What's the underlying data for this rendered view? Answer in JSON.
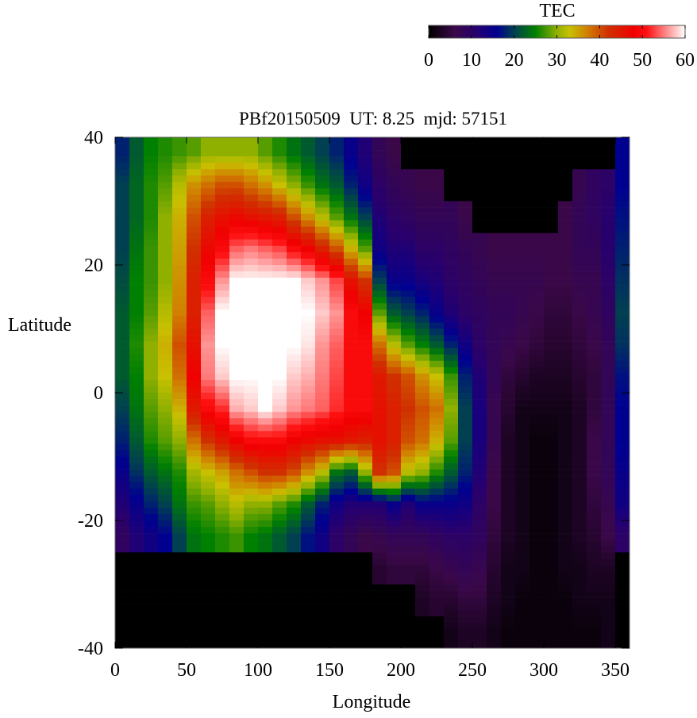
{
  "chart_data": {
    "type": "heatmap",
    "title": "PBf20150509  UT: 8.25  mjd: 57151",
    "xlabel": "Longitude",
    "ylabel": "Latitude",
    "xlim": [
      0,
      360
    ],
    "ylim": [
      -40,
      40
    ],
    "xticks": [
      "0",
      "50",
      "100",
      "150",
      "200",
      "250",
      "300",
      "350"
    ],
    "xtick_values": [
      0,
      50,
      100,
      150,
      200,
      250,
      300,
      350
    ],
    "yticks": [
      "40",
      "20",
      "0",
      "-20",
      "-40"
    ],
    "ytick_values": [
      40,
      20,
      0,
      -20,
      -40
    ],
    "colorbar": {
      "label": "TEC",
      "range": [
        0,
        60
      ],
      "ticks": [
        "0",
        "10",
        "20",
        "30",
        "40",
        "50",
        "60"
      ],
      "tick_values": [
        0,
        10,
        20,
        30,
        40,
        50,
        60
      ],
      "colormap": [
        [
          0,
          "#000000"
        ],
        [
          6,
          "#3a0848"
        ],
        [
          11,
          "#28006e"
        ],
        [
          16,
          "#000090"
        ],
        [
          20,
          "#004050"
        ],
        [
          25,
          "#008000"
        ],
        [
          30,
          "#90b000"
        ],
        [
          33,
          "#c8c000"
        ],
        [
          37,
          "#d08000"
        ],
        [
          42,
          "#d03000"
        ],
        [
          48,
          "#f00000"
        ],
        [
          51,
          "#ff1010"
        ],
        [
          60,
          "#ffffff"
        ]
      ],
      "position": "top-right"
    },
    "no_data_color": "#000000",
    "lon_centers": [
      5,
      15,
      25,
      35,
      45,
      55,
      65,
      75,
      85,
      95,
      105,
      115,
      125,
      135,
      145,
      155,
      165,
      175,
      185,
      195,
      205,
      215,
      225,
      235,
      245,
      255,
      265,
      275,
      285,
      295,
      305,
      315,
      325,
      335,
      345,
      355
    ],
    "lat_centers": [
      37.5,
      32.5,
      27.5,
      22.5,
      17.5,
      12.5,
      7.5,
      2.5,
      -2.5,
      -7.5,
      -12.5,
      -17.5,
      -22.5,
      -27.5,
      -32.5,
      -37.5
    ],
    "values_by_lon": [
      [
        18,
        20,
        20,
        20,
        21,
        22,
        22,
        22,
        20,
        18,
        15,
        12,
        9,
        null,
        null,
        null
      ],
      [
        22,
        23,
        23,
        24,
        25,
        25,
        26,
        25,
        24,
        22,
        19,
        15,
        12,
        null,
        null,
        null
      ],
      [
        25,
        26,
        26,
        27,
        27,
        28,
        30,
        30,
        28,
        26,
        22,
        18,
        14,
        null,
        null,
        null
      ],
      [
        26,
        28,
        30,
        30,
        30,
        32,
        34,
        33,
        30,
        28,
        24,
        20,
        16,
        null,
        null,
        null
      ],
      [
        27,
        32,
        34,
        35,
        36,
        37,
        40,
        38,
        34,
        30,
        26,
        24,
        20,
        null,
        null,
        null
      ],
      [
        28,
        36,
        40,
        42,
        44,
        44,
        46,
        48,
        45,
        38,
        31,
        27,
        24,
        null,
        null,
        null
      ],
      [
        30,
        38,
        44,
        47,
        50,
        54,
        56,
        55,
        50,
        42,
        33,
        28,
        25,
        null,
        null,
        null
      ],
      [
        30,
        40,
        46,
        50,
        56,
        60,
        60,
        58,
        52,
        45,
        35,
        30,
        26,
        null,
        null,
        null
      ],
      [
        30,
        40,
        47,
        54,
        60,
        60,
        60,
        60,
        57,
        48,
        38,
        32,
        27,
        null,
        null,
        null
      ],
      [
        30,
        38,
        46,
        55,
        60,
        60,
        60,
        60,
        58,
        50,
        40,
        30,
        25,
        null,
        null,
        null
      ],
      [
        28,
        36,
        45,
        54,
        60,
        60,
        60,
        60,
        60,
        50,
        42,
        30,
        24,
        null,
        null,
        null
      ],
      [
        26,
        33,
        44,
        53,
        60,
        60,
        60,
        60,
        58,
        50,
        42,
        28,
        22,
        null,
        null,
        null
      ],
      [
        24,
        30,
        40,
        50,
        60,
        60,
        60,
        58,
        56,
        48,
        40,
        26,
        20,
        null,
        null,
        null
      ],
      [
        22,
        27,
        36,
        48,
        58,
        60,
        59,
        57,
        55,
        47,
        36,
        22,
        17,
        null,
        null,
        null
      ],
      [
        20,
        24,
        32,
        44,
        56,
        58,
        56,
        55,
        54,
        46,
        32,
        18,
        14,
        null,
        null,
        null
      ],
      [
        18,
        22,
        28,
        40,
        53,
        56,
        54,
        53,
        52,
        46,
        24,
        14,
        10,
        null,
        null,
        null
      ],
      [
        15,
        18,
        24,
        34,
        46,
        50,
        50,
        50,
        50,
        45,
        22,
        12,
        8,
        null,
        null,
        null
      ],
      [
        12,
        14,
        20,
        28,
        42,
        48,
        50,
        50,
        50,
        44,
        30,
        12,
        6,
        null,
        null,
        null
      ],
      [
        8,
        10,
        12,
        14,
        20,
        28,
        38,
        45,
        46,
        46,
        42,
        12,
        7,
        4,
        null,
        null
      ],
      [
        6,
        8,
        10,
        12,
        15,
        22,
        32,
        42,
        44,
        44,
        40,
        15,
        8,
        5,
        null,
        null
      ],
      [
        null,
        7,
        9,
        12,
        15,
        20,
        28,
        40,
        42,
        40,
        32,
        12,
        8,
        5,
        null,
        null
      ],
      [
        null,
        6,
        8,
        10,
        13,
        18,
        25,
        36,
        40,
        38,
        30,
        15,
        8,
        5,
        3,
        null
      ],
      [
        null,
        6,
        8,
        10,
        12,
        15,
        22,
        33,
        38,
        34,
        26,
        15,
        9,
        6,
        4,
        null
      ],
      [
        null,
        null,
        8,
        9,
        10,
        12,
        18,
        27,
        30,
        28,
        22,
        15,
        10,
        7,
        4,
        2
      ],
      [
        null,
        null,
        6,
        8,
        9,
        10,
        14,
        18,
        20,
        20,
        18,
        14,
        10,
        8,
        5,
        3
      ],
      [
        null,
        null,
        null,
        7,
        8,
        9,
        10,
        12,
        13,
        13,
        12,
        10,
        9,
        7,
        5,
        3
      ],
      [
        null,
        null,
        null,
        6,
        7,
        8,
        8,
        8,
        7,
        7,
        6,
        6,
        5,
        4,
        3,
        2
      ],
      [
        null,
        null,
        null,
        6,
        7,
        8,
        7,
        5,
        4,
        3,
        3,
        3,
        3,
        2,
        2,
        1
      ],
      [
        null,
        null,
        null,
        6,
        7,
        7,
        6,
        4,
        2,
        2,
        2,
        2,
        2,
        2,
        1,
        1
      ],
      [
        null,
        null,
        null,
        6,
        7,
        6,
        5,
        3,
        2,
        1,
        1,
        1,
        1,
        1,
        1,
        1
      ],
      [
        null,
        null,
        null,
        6,
        6,
        5,
        4,
        3,
        2,
        1,
        1,
        1,
        1,
        1,
        1,
        1
      ],
      [
        null,
        null,
        6,
        6,
        6,
        5,
        4,
        3,
        2,
        2,
        2,
        2,
        2,
        2,
        1,
        1
      ],
      [
        null,
        7,
        8,
        8,
        7,
        6,
        5,
        4,
        3,
        3,
        3,
        3,
        3,
        2,
        2,
        1
      ],
      [
        null,
        9,
        9,
        8,
        7,
        7,
        6,
        5,
        5,
        6,
        6,
        5,
        4,
        3,
        2,
        1
      ],
      [
        null,
        10,
        11,
        11,
        10,
        9,
        8,
        8,
        8,
        8,
        8,
        7,
        6,
        3,
        2,
        2
      ],
      [
        16,
        16,
        17,
        18,
        19,
        20,
        19,
        17,
        16,
        16,
        15,
        14,
        10,
        null,
        null,
        null
      ]
    ]
  }
}
